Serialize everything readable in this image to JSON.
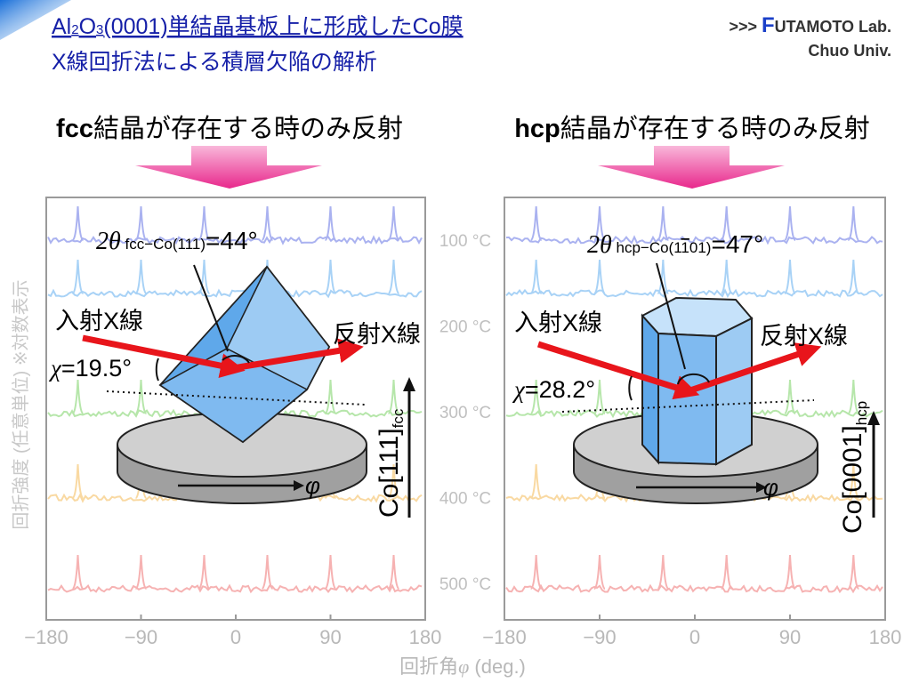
{
  "header": {
    "title_line1": [
      "Al",
      "2",
      "O",
      "3",
      "(0001)単結晶基板上に形成したCo膜"
    ],
    "title_line2": "X線回折法による積層欠陥の解析",
    "lab_prefix": ">>> ",
    "lab_initial": "F",
    "lab_rest": "UTAMOTO Lab.",
    "university": "Chuo Univ."
  },
  "panels": [
    {
      "heading_bold": "fcc",
      "heading": "結晶が存在する時のみ反射",
      "two_theta": [
        "2θ",
        " fcc−Co(111)",
        "=44°"
      ],
      "incident": "入射X線",
      "reflected": "反射X線",
      "chi": [
        "χ",
        "=19.5°"
      ],
      "axis": [
        "Co[111]",
        "fcc"
      ],
      "rotation": "φ",
      "xlim": [
        -180,
        180
      ],
      "xticks": [
        {
          "value": -180,
          "label": "−180"
        },
        {
          "value": -90,
          "label": "−90"
        },
        0,
        90,
        180
      ],
      "peaks": [
        -150,
        -90,
        -30,
        30,
        90,
        150
      ]
    },
    {
      "heading_bold": "hcp",
      "heading": "結晶が存在する時のみ反射",
      "two_theta": [
        "2θ",
        " hcp−Co(1",
        "1",
        "01)",
        "=47°"
      ],
      "incident": "入射X線",
      "reflected": "反射X線",
      "chi": [
        "χ",
        "=28.2°"
      ],
      "axis": [
        "Co[0001]",
        "hcp"
      ],
      "rotation": "φ",
      "xlim": [
        -180,
        180
      ],
      "xticks": [
        {
          "value": -180,
          "label": "−180"
        },
        {
          "value": -90,
          "label": "−90"
        },
        0,
        90,
        180
      ],
      "peaks": [
        -150,
        -90,
        -30,
        30,
        90,
        150
      ]
    }
  ],
  "temperatures": [
    "100 °C",
    "200 °C",
    "300 °C",
    "400 °C",
    "500 °C"
  ],
  "y_axis_label": "回折強度 (任意単位) ※対数表示",
  "x_axis_label": [
    "回折角",
    "φ",
    " (deg.)"
  ]
}
